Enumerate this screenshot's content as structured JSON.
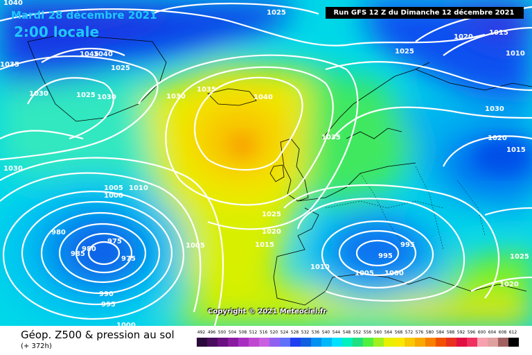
{
  "header": {
    "date": "Mardi 28 décembre 2021",
    "time": "2:00 locale",
    "run": "Run GFS 12 Z du Dimanche 12 décembre 2021"
  },
  "copyright": "Copyright © 2021 Meteociel.fr",
  "footer": {
    "title": "Géop. Z500 & pression au sol",
    "subtitle": "(+ 372h)"
  },
  "legend": {
    "values": [
      "492",
      "496",
      "500",
      "504",
      "508",
      "512",
      "516",
      "520",
      "524",
      "528",
      "532",
      "536",
      "540",
      "544",
      "548",
      "552",
      "556",
      "560",
      "564",
      "568",
      "572",
      "576",
      "580",
      "584",
      "588",
      "592",
      "596",
      "600",
      "604",
      "608",
      "612"
    ],
    "colors": [
      "#2a0a3a",
      "#4a0c5c",
      "#6a1080",
      "#8a1aa0",
      "#a830c0",
      "#c048d0",
      "#c860e0",
      "#9060f0",
      "#6070f8",
      "#2040f0",
      "#1060e0",
      "#0090f0",
      "#00b8f8",
      "#00e0ff",
      "#00f0c0",
      "#20e080",
      "#50f040",
      "#a0f020",
      "#e8f000",
      "#f8e800",
      "#f8c800",
      "#f8a800",
      "#f88000",
      "#f05000",
      "#e83020",
      "#e01040",
      "#f03060",
      "#f8a0b0",
      "#e0a0a0",
      "#a06060",
      "#000000"
    ]
  },
  "isobar_labels": [
    "1040",
    "1025",
    "1045",
    "1040",
    "1035",
    "1025",
    "1030",
    "1025",
    "1030",
    "1035",
    "1040",
    "1030",
    "1035",
    "1025",
    "1020",
    "1015",
    "1010",
    "1030",
    "1020",
    "1015",
    "1005",
    "1010",
    "1000",
    "1030",
    "980",
    "975",
    "980",
    "985",
    "975",
    "990",
    "995",
    "1000",
    "1005",
    "1025",
    "1020",
    "1015",
    "1010",
    "1005",
    "1000",
    "995",
    "995",
    "1025",
    "1020",
    "1025"
  ]
}
